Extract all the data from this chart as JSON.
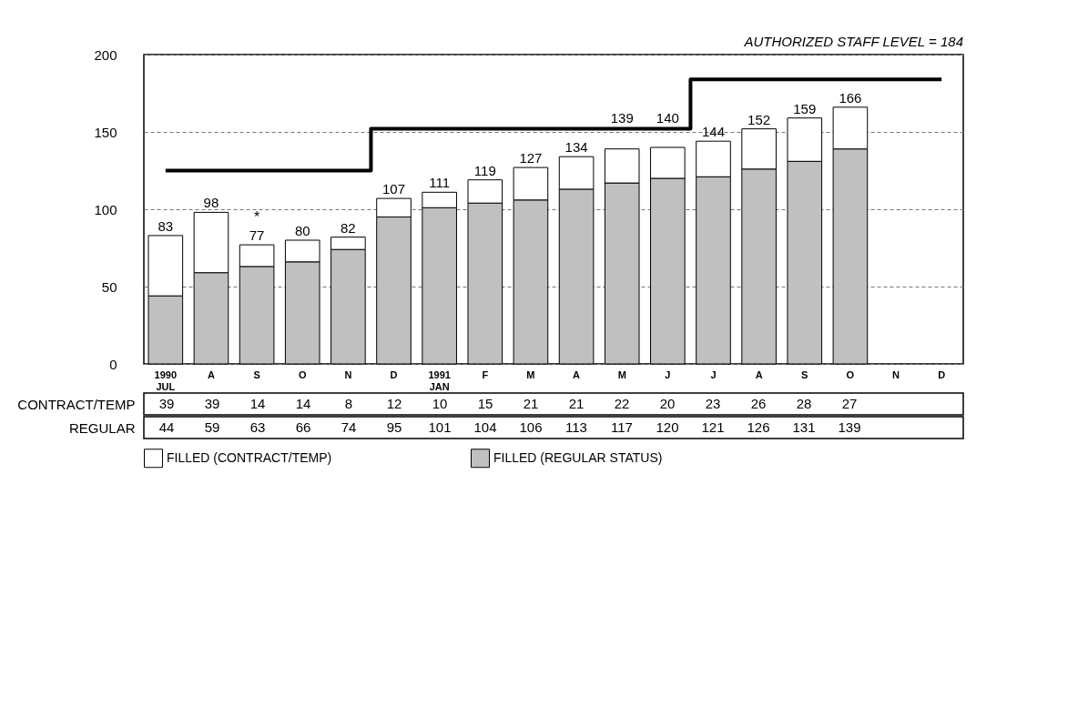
{
  "chart_data": {
    "type": "bar",
    "stacked": true,
    "categories": [
      "1990 JUL",
      "A",
      "S",
      "O",
      "N",
      "D",
      "1991 JAN",
      "F",
      "M",
      "A",
      "M",
      "J",
      "J",
      "A",
      "S",
      "O",
      "N",
      "D"
    ],
    "series": [
      {
        "name": "FILLED (REGULAR STATUS)",
        "color": "#c0c0c0",
        "values": [
          44,
          59,
          63,
          66,
          74,
          95,
          101,
          104,
          106,
          113,
          117,
          120,
          121,
          126,
          131,
          139,
          null,
          null
        ],
        "value_labels": [
          "44",
          "59",
          "63",
          "66",
          "74",
          "95",
          "101",
          "104",
          "106",
          "113",
          "117",
          "120",
          "121",
          "126",
          "131",
          "139",
          null,
          null
        ]
      },
      {
        "name": "FILLED (CONTRACT/TEMP)",
        "color": "#ffffff",
        "values": [
          39,
          39,
          14,
          14,
          8,
          12,
          10,
          15,
          21,
          21,
          22,
          20,
          23,
          26,
          28,
          27,
          null,
          null
        ],
        "value_labels": [
          "39",
          "39",
          "14",
          "14",
          "8",
          "12",
          "10",
          "15",
          "21",
          "21",
          "22",
          "20",
          "23",
          "26",
          "28",
          "27",
          null,
          null
        ]
      },
      {
        "type": "step",
        "color": "#000000",
        "values": [
          125,
          125,
          125,
          125,
          125,
          152,
          152,
          152,
          152,
          152,
          152,
          152,
          184,
          184,
          184,
          184,
          184,
          184
        ]
      }
    ],
    "totals": [
      "83",
      "98",
      "77",
      "80",
      "82",
      "107",
      "111",
      "119",
      "127",
      "134",
      "139",
      "140",
      "144",
      "152",
      "159",
      "166",
      null,
      null
    ],
    "annotations": [
      {
        "text": "AUTHORIZED STAFF LEVEL = 184"
      },
      {
        "text": "*",
        "x": "S",
        "y": 77
      },
      "CONTRACT/TEMP",
      "REGULAR"
    ],
    "ylim": [
      0,
      200
    ],
    "yticks": [
      0,
      50,
      100,
      150,
      200
    ],
    "grid": "y",
    "legend": "bottom"
  }
}
